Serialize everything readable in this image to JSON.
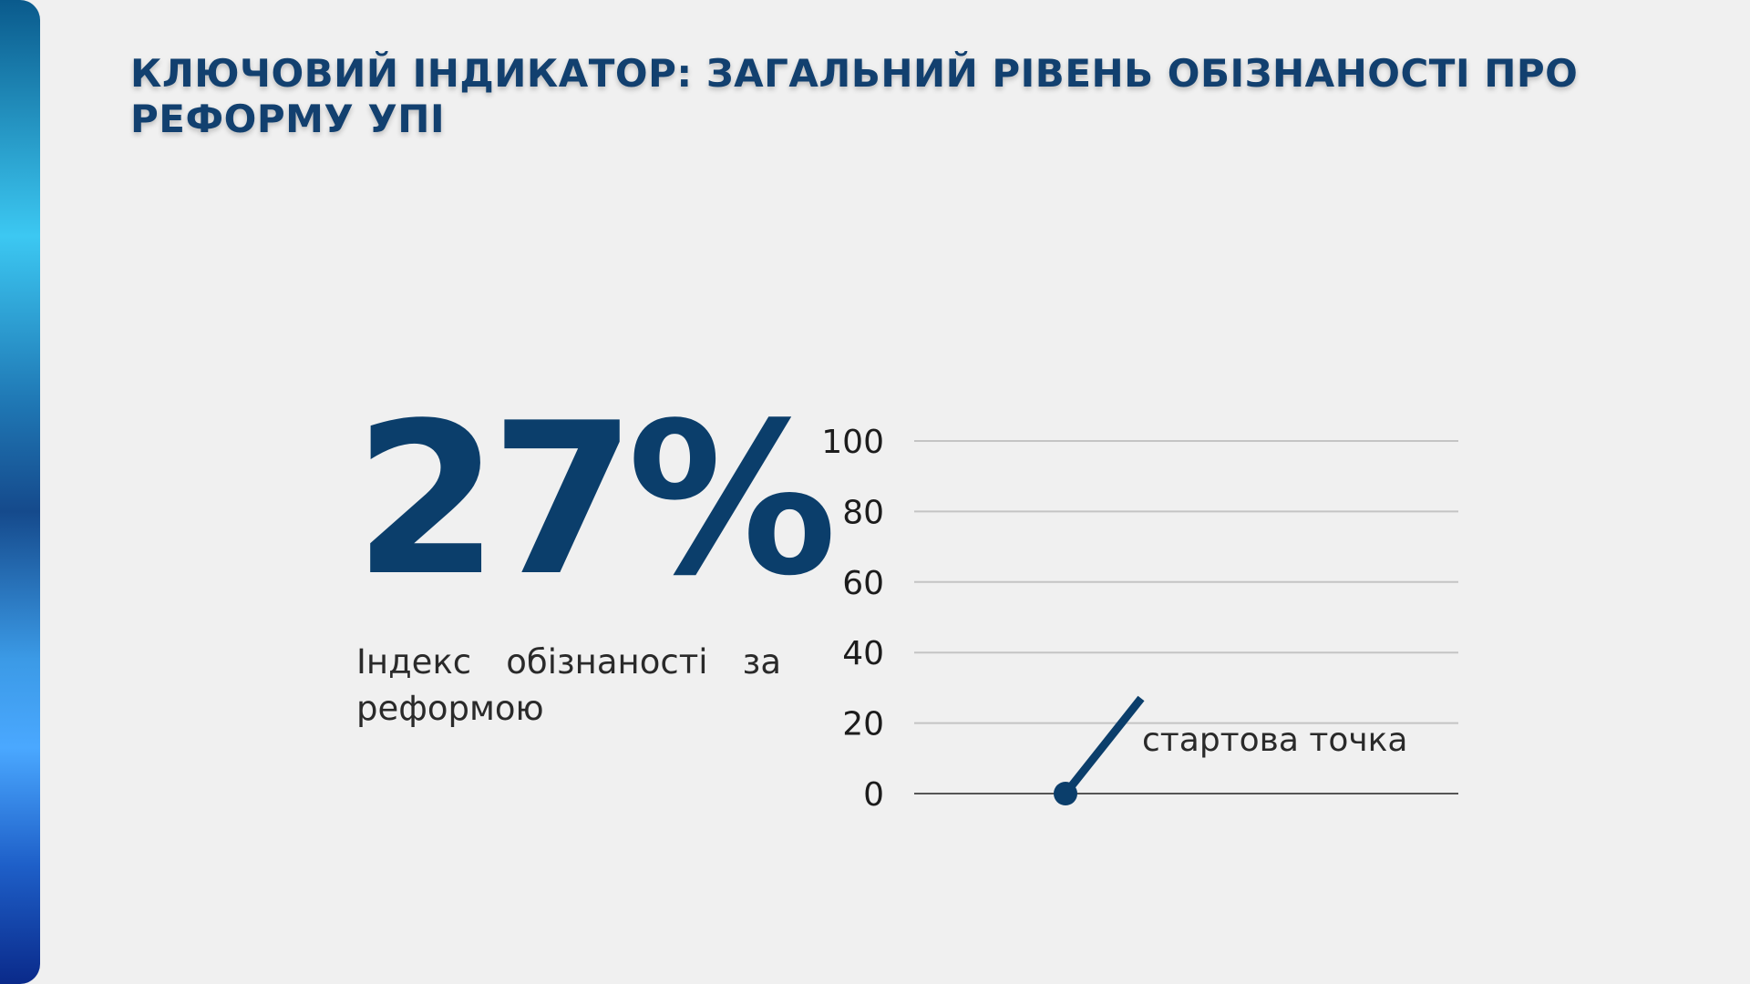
{
  "slide": {
    "title": "Ключовий індикатор: загальний рівень обізнаності про реформу УПІ",
    "kpi_value": "27%",
    "kpi_label": "Індекс обізнаності за реформою"
  },
  "colors": {
    "accent": "#0b3e6b",
    "title": "#12406f",
    "grid": "#c4c4c4",
    "baseline": "#555555"
  },
  "chart_data": {
    "type": "line",
    "title": "",
    "xlabel": "",
    "ylabel": "",
    "ylim": [
      0,
      100
    ],
    "yticks": [
      0,
      20,
      40,
      60,
      80,
      100
    ],
    "grid": true,
    "series": [
      {
        "points": [
          {
            "x": 0,
            "y": 0
          },
          {
            "x": 1,
            "y": 27
          }
        ]
      }
    ],
    "annotations": [
      {
        "text": "стартова точка"
      }
    ]
  }
}
